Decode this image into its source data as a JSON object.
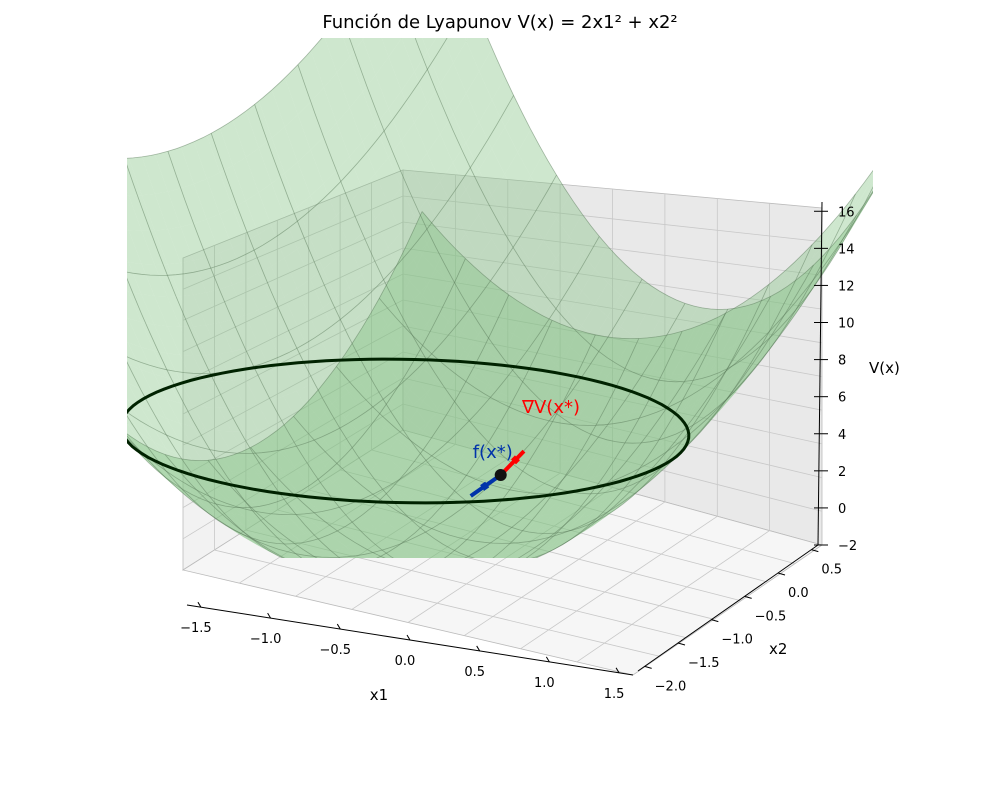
{
  "title": "Función de Lyapunov V(x) = 2x1² + x2²",
  "chart_data": {
    "type": "surface",
    "function": "V(x) = 2x1² + x2²",
    "xlabel": "x1",
    "ylabel": "x2",
    "zlabel": "V(x)",
    "xticks": [
      "−1.5",
      "−1.0",
      "−0.5",
      "0.0",
      "0.5",
      "1.0",
      "1.5"
    ],
    "yticks": [
      "−2.0",
      "−1.5",
      "−1.0",
      "−0.5",
      "0.0",
      "0.5"
    ],
    "zticks": [
      "−2",
      "0",
      "2",
      "4",
      "6",
      "8",
      "10",
      "12",
      "14",
      "16"
    ],
    "xlim": [
      -1.6,
      1.6
    ],
    "ylim": [
      -2.1,
      0.6
    ],
    "zlim": [
      -2,
      16.5
    ],
    "level_curve": {
      "V": 8,
      "color": "#002200"
    },
    "point": {
      "x1": -0.5,
      "x2": -1.732,
      "V": 3.5
    },
    "annotations": [
      {
        "label": "∇V(x*)",
        "color": "#ff0000"
      },
      {
        "label": "f(x*)",
        "color": "#0033aa"
      }
    ],
    "surface_color": "#7fbf7f",
    "grid": true
  }
}
